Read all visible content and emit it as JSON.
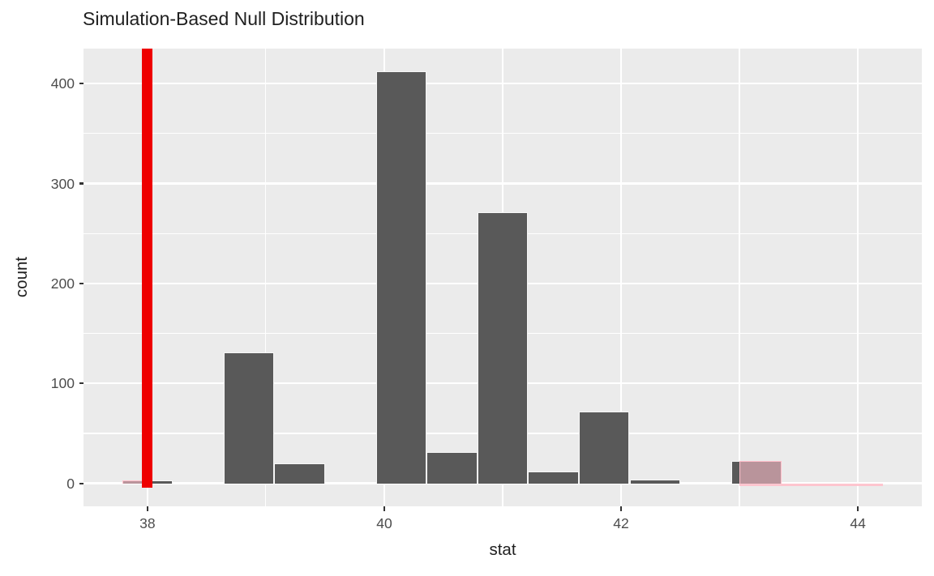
{
  "chart_data": {
    "type": "histogram",
    "title": "Simulation-Based Null Distribution",
    "xlabel": "stat",
    "ylabel": "count",
    "x_ticks": [
      38,
      40,
      42,
      44
    ],
    "x_minor_ticks": [
      39,
      41,
      43
    ],
    "y_ticks": [
      0,
      100,
      200,
      300,
      400
    ],
    "y_minor_ticks": [
      50,
      150,
      250,
      350
    ],
    "xlim": [
      37.46,
      44.54
    ],
    "ylim": [
      -23,
      435
    ],
    "grid": "on",
    "legend": "none",
    "binwidth": 0.4286,
    "bins": [
      {
        "center": 38.0,
        "count": 3
      },
      {
        "center": 38.857,
        "count": 131
      },
      {
        "center": 39.286,
        "count": 20
      },
      {
        "center": 40.143,
        "count": 412
      },
      {
        "center": 40.571,
        "count": 31
      },
      {
        "center": 41.0,
        "count": 271
      },
      {
        "center": 41.429,
        "count": 12
      },
      {
        "center": 41.857,
        "count": 72
      },
      {
        "center": 42.286,
        "count": 4
      },
      {
        "center": 43.143,
        "count": 22
      }
    ],
    "observed_stat": 38,
    "shade": {
      "direction": "two-sided",
      "left_to": 38.0,
      "right_from": 43.0,
      "right_baseline_end": 44.214
    },
    "colors": {
      "bar_fill": "#595959",
      "bar_border": "#ffffff",
      "panel_bg": "#ebebeb",
      "grid": "#ffffff",
      "obs_line": "#ee0000",
      "shade_fill": "rgba(255,192,203,0.58)",
      "shade_border": "#ffc0cb",
      "tick_label": "#4d4d4d",
      "text": "#1f1f1f"
    }
  }
}
